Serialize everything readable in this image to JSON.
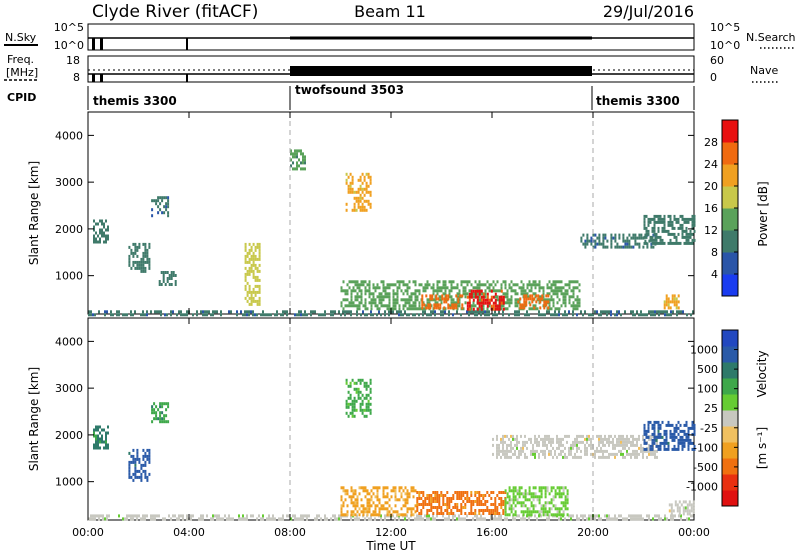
{
  "header": {
    "title": "Clyde River (fitACF)",
    "beam": "Beam 11",
    "date": "29/Jul/2016"
  },
  "nsky_panel": {
    "left_label": "N.Sky",
    "right_label": "N.Search",
    "left_ticks": [
      "10^5",
      "10^0"
    ],
    "right_ticks": [
      "10^5",
      "10^0"
    ]
  },
  "freq_panel": {
    "left_label_1": "Freq.",
    "left_label_2": "[MHz]",
    "right_label": "Nave",
    "left_ticks": [
      "18",
      "8"
    ],
    "right_ticks": [
      "60",
      "0"
    ]
  },
  "cpid_panel": {
    "label": "CPID",
    "segments": [
      {
        "name": "themis 3300",
        "start_hour": 0,
        "end_hour": 8
      },
      {
        "name": "twofsound 3503",
        "start_hour": 8,
        "end_hour": 20
      },
      {
        "name": "themis 3300",
        "start_hour": 20,
        "end_hour": 24
      }
    ]
  },
  "xaxis": {
    "label": "Time UT",
    "ticks": [
      "00:00",
      "04:00",
      "08:00",
      "12:00",
      "16:00",
      "20:00",
      "00:00"
    ]
  },
  "power_colorbar": {
    "label": "Power [dB]",
    "ticks": [
      "4",
      "8",
      "12",
      "16",
      "20",
      "24",
      "28"
    ],
    "colors": [
      "#1a3cf0",
      "#2a55a8",
      "#3f7a6a",
      "#5aa25a",
      "#c8c84a",
      "#f0a020",
      "#f06a10",
      "#e81010"
    ]
  },
  "velocity_colorbar": {
    "label": "Velocity",
    "unit": "[m s⁻¹]",
    "ticks": [
      "1000",
      "500",
      "100",
      "25",
      "-25",
      "-100",
      "-500",
      "-1000"
    ],
    "colors": [
      "#2248c0",
      "#2a5aa8",
      "#2e7a6a",
      "#3ea84a",
      "#66cc33",
      "#c8c8c0",
      "#f0c060",
      "#f0a020",
      "#f07010",
      "#e83010",
      "#e01010"
    ]
  },
  "chart_data": [
    {
      "type": "heatmap",
      "title": "Power",
      "ylabel": "Slant Range [km]",
      "xlabel": "Time UT",
      "xlim": [
        0,
        24
      ],
      "ylim": [
        180,
        4500
      ],
      "yticks": [
        1000,
        2000,
        3000,
        4000
      ],
      "colorbar_range": [
        0,
        32
      ],
      "regions": [
        {
          "t0": 0.0,
          "t1": 24.0,
          "r0": 180,
          "r1": 260,
          "value": 8
        },
        {
          "t0": 0.2,
          "t1": 0.8,
          "r0": 1700,
          "r1": 2200,
          "value": 10
        },
        {
          "t0": 1.6,
          "t1": 2.4,
          "r0": 1100,
          "r1": 1700,
          "value": 10
        },
        {
          "t0": 2.5,
          "t1": 3.2,
          "r0": 2300,
          "r1": 2700,
          "value": 8
        },
        {
          "t0": 2.8,
          "t1": 3.5,
          "r0": 800,
          "r1": 1100,
          "value": 10
        },
        {
          "t0": 6.2,
          "t1": 6.8,
          "r0": 400,
          "r1": 1700,
          "value": 18
        },
        {
          "t0": 8.0,
          "t1": 8.6,
          "r0": 3300,
          "r1": 3700,
          "value": 12
        },
        {
          "t0": 10.2,
          "t1": 11.2,
          "r0": 2400,
          "r1": 3200,
          "value": 20
        },
        {
          "t0": 10.0,
          "t1": 19.5,
          "r0": 300,
          "r1": 900,
          "value": 14
        },
        {
          "t0": 13.2,
          "t1": 14.8,
          "r0": 300,
          "r1": 600,
          "value": 26
        },
        {
          "t0": 15.0,
          "t1": 16.5,
          "r0": 300,
          "r1": 700,
          "value": 28
        },
        {
          "t0": 17.0,
          "t1": 18.2,
          "r0": 300,
          "r1": 600,
          "value": 26
        },
        {
          "t0": 19.5,
          "t1": 22.5,
          "r0": 1600,
          "r1": 1900,
          "value": 8
        },
        {
          "t0": 22.0,
          "t1": 24.0,
          "r0": 1700,
          "r1": 2300,
          "value": 10
        },
        {
          "t0": 22.8,
          "t1": 23.4,
          "r0": 300,
          "r1": 600,
          "value": 20
        }
      ]
    },
    {
      "type": "heatmap",
      "title": "Velocity",
      "ylabel": "Slant Range [km]",
      "xlabel": "Time UT",
      "xlim": [
        0,
        24
      ],
      "ylim": [
        180,
        4500
      ],
      "yticks": [
        1000,
        2000,
        3000,
        4000
      ],
      "colorbar_range": [
        -1000,
        1000
      ],
      "regions": [
        {
          "t0": 0.0,
          "t1": 24.0,
          "r0": 180,
          "r1": 300,
          "value": 50
        },
        {
          "t0": 0.2,
          "t1": 0.8,
          "r0": 1700,
          "r1": 2200,
          "value": 500
        },
        {
          "t0": 1.6,
          "t1": 2.4,
          "r0": 1000,
          "r1": 1700,
          "value": 700
        },
        {
          "t0": 2.5,
          "t1": 3.2,
          "r0": 2300,
          "r1": 2700,
          "value": 400
        },
        {
          "t0": 10.2,
          "t1": 11.2,
          "r0": 2400,
          "r1": 3200,
          "value": 300
        },
        {
          "t0": 10.0,
          "t1": 13.0,
          "r0": 300,
          "r1": 900,
          "value": -300
        },
        {
          "t0": 13.0,
          "t1": 16.5,
          "r0": 300,
          "r1": 800,
          "value": -500
        },
        {
          "t0": 16.5,
          "t1": 19.0,
          "r0": 300,
          "r1": 900,
          "value": 100
        },
        {
          "t0": 16.0,
          "t1": 22.5,
          "r0": 1500,
          "r1": 2000,
          "value": 0
        },
        {
          "t0": 22.0,
          "t1": 24.0,
          "r0": 1700,
          "r1": 2300,
          "value": 700
        },
        {
          "t0": 23.0,
          "t1": 24.0,
          "r0": 300,
          "r1": 600,
          "value": 0
        }
      ]
    }
  ]
}
